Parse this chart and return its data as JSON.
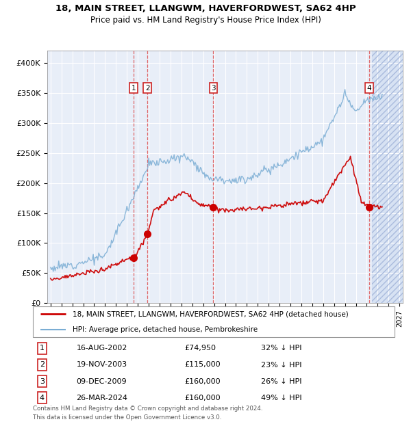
{
  "title1": "18, MAIN STREET, LLANGWM, HAVERFORDWEST, SA62 4HP",
  "title2": "Price paid vs. HM Land Registry's House Price Index (HPI)",
  "legend_line1": "18, MAIN STREET, LLANGWM, HAVERFORDWEST, SA62 4HP (detached house)",
  "legend_line2": "HPI: Average price, detached house, Pembrokeshire",
  "table_rows": [
    [
      "1",
      "16-AUG-2002",
      "£74,950",
      "32% ↓ HPI"
    ],
    [
      "2",
      "19-NOV-2003",
      "£115,000",
      "23% ↓ HPI"
    ],
    [
      "3",
      "09-DEC-2009",
      "£160,000",
      "26% ↓ HPI"
    ],
    [
      "4",
      "26-MAR-2024",
      "£160,000",
      "49% ↓ HPI"
    ]
  ],
  "footnote1": "Contains HM Land Registry data © Crown copyright and database right 2024.",
  "footnote2": "This data is licensed under the Open Government Licence v3.0.",
  "ylim": [
    0,
    420000
  ],
  "yticks": [
    0,
    50000,
    100000,
    150000,
    200000,
    250000,
    300000,
    350000,
    400000
  ],
  "ytick_labels": [
    "£0",
    "£50K",
    "£100K",
    "£150K",
    "£200K",
    "£250K",
    "£300K",
    "£350K",
    "£400K"
  ],
  "price_paid_color": "#cc0000",
  "hpi_color": "#7aadd4",
  "marker_color": "#cc0000",
  "sale_dates_num": [
    2002.62,
    2003.89,
    2009.93,
    2024.23
  ],
  "sale_prices": [
    74950,
    115000,
    160000,
    160000
  ],
  "sale_labels": [
    "1",
    "2",
    "3",
    "4"
  ],
  "plot_bg": "#e8eef8",
  "xmin": 1994.7,
  "xmax": 2027.3,
  "future_start": 2024.5
}
